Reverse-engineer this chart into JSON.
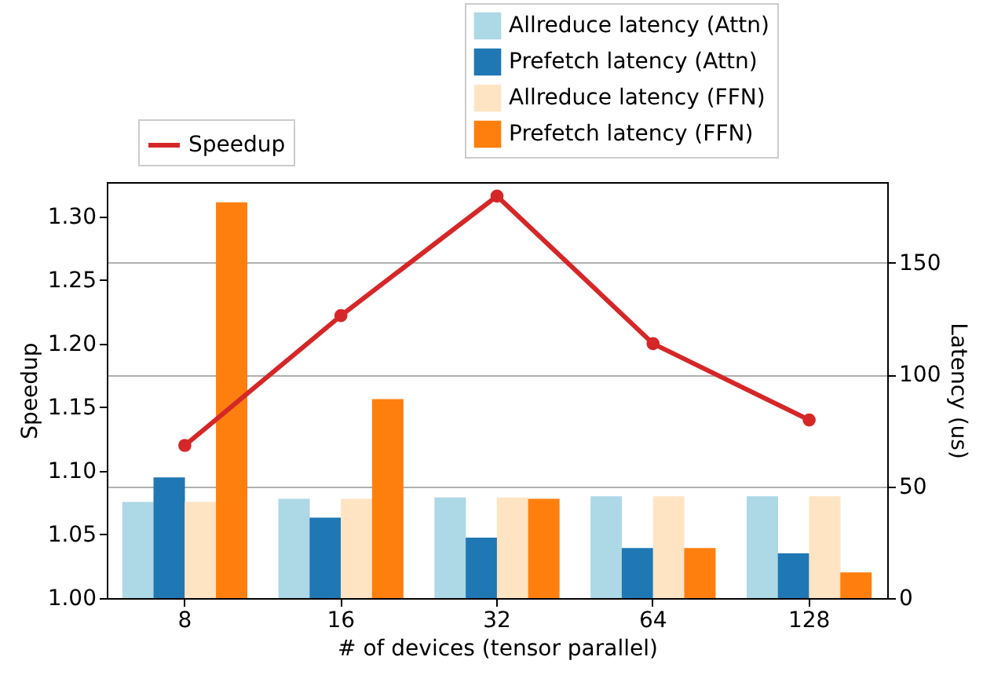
{
  "chart_data": {
    "type": "bar",
    "xlabel": "# of devices (tensor parallel)",
    "ylabel": "Speedup",
    "y2label": "Latency (us)",
    "categories": [
      "8",
      "16",
      "32",
      "64",
      "128"
    ],
    "series": [
      {
        "name": "Allreduce latency (Attn)",
        "color": "#add8e6",
        "axis": "y2",
        "values": [
          43,
          44.4,
          45,
          45.5,
          45.5
        ]
      },
      {
        "name": "Prefetch latency (Attn)",
        "color": "#1f77b4",
        "axis": "y2",
        "values": [
          54,
          36,
          27,
          22.4,
          20
        ]
      },
      {
        "name": "Allreduce latency (FFN)",
        "color": "#ffe4c4",
        "axis": "y2",
        "values": [
          43,
          44.4,
          45,
          45.5,
          45.5
        ]
      },
      {
        "name": "Prefetch latency (FFN)",
        "color": "#ff7f0e",
        "axis": "y2",
        "values": [
          177,
          89,
          44.4,
          22.4,
          11.5
        ]
      },
      {
        "name": "Speedup",
        "color": "#d62728",
        "type": "line",
        "axis": "y",
        "marker": "circle",
        "values": [
          1.12,
          1.222,
          1.316,
          1.2,
          1.14
        ]
      }
    ],
    "ylim": [
      1.0,
      1.327
    ],
    "yticks": [
      {
        "value": 1.0,
        "label": "1.00"
      },
      1.05,
      {
        "value": 1.1,
        "label": "1.10"
      },
      1.15,
      {
        "value": 1.2,
        "label": "1.20"
      },
      1.25,
      {
        "value": 1.3,
        "label": "1.30"
      }
    ],
    "y2lim": [
      0,
      186
    ],
    "y2ticks": [
      0,
      50,
      100,
      150
    ],
    "grid": "y2",
    "legend": "top"
  }
}
